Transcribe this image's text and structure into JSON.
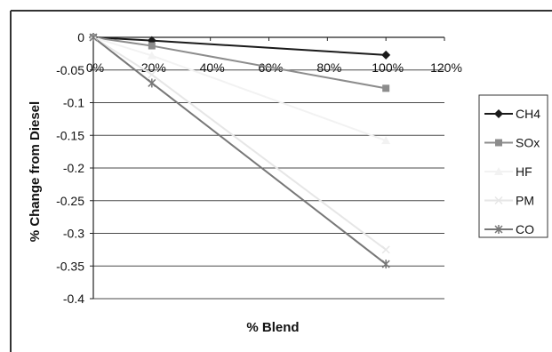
{
  "chart_data": {
    "type": "line",
    "title": "",
    "xlabel": "% Blend",
    "ylabel": "% Change from Diesel",
    "x": [
      0,
      20,
      100
    ],
    "xlim": [
      0,
      120
    ],
    "ylim": [
      -0.4,
      0
    ],
    "x_tick_values": [
      0,
      20,
      40,
      60,
      80,
      100,
      120
    ],
    "x_tick_labels": [
      "0%",
      "20%",
      "40%",
      "60%",
      "80%",
      "100%",
      "120%"
    ],
    "y_tick_values": [
      0,
      -0.05,
      -0.1,
      -0.15,
      -0.2,
      -0.25,
      -0.3,
      -0.35,
      -0.4
    ],
    "y_tick_labels": [
      "0",
      "-0.05",
      "-0.1",
      "-0.15",
      "-0.2",
      "-0.25",
      "-0.3",
      "-0.35",
      "-0.4"
    ],
    "grid": "horizontal",
    "legend_position": "right",
    "series": [
      {
        "name": "CH4",
        "values": [
          0,
          -0.005,
          -0.027
        ],
        "color": "#1a1a1a",
        "marker": "diamond"
      },
      {
        "name": "SOx",
        "values": [
          0,
          -0.013,
          -0.078
        ],
        "color": "#8c8c8c",
        "marker": "square"
      },
      {
        "name": "HF",
        "values": [
          0,
          -0.028,
          -0.158
        ],
        "color": "#f2f2f2",
        "marker": "triangle"
      },
      {
        "name": "PM",
        "values": [
          0,
          -0.057,
          -0.325
        ],
        "color": "#e6e6e6",
        "marker": "x"
      },
      {
        "name": "CO",
        "values": [
          0,
          -0.07,
          -0.347
        ],
        "color": "#777777",
        "marker": "star"
      }
    ]
  }
}
